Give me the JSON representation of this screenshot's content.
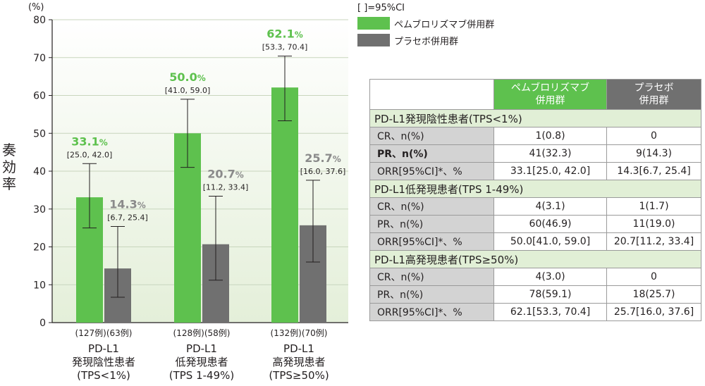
{
  "colors": {
    "pembro": "#5ec14e",
    "placebo": "#707070",
    "bg_top": "#ffffff",
    "bg_bottom": "#e4efd9",
    "pembro_label": "#5ec14e",
    "placebo_label": "#8a8a8a"
  },
  "chart_data": {
    "type": "bar",
    "ylabel": "奏効率",
    "unit": "(%)",
    "ylim": [
      0,
      80
    ],
    "yticks": [
      "0",
      "10",
      "20",
      "30",
      "40",
      "50",
      "60",
      "70",
      "80"
    ],
    "groups": [
      {
        "n_label": "(127例)(63例)",
        "name_lines": [
          "PD-L1",
          "発現陰性患者",
          "(TPS<1%)"
        ]
      },
      {
        "n_label": "(128例)(58例)",
        "name_lines": [
          "PD-L1",
          "低発現患者",
          "(TPS 1-49%)"
        ]
      },
      {
        "n_label": "(132例)(70例)",
        "name_lines": [
          "PD-L1",
          "高発現患者",
          "(TPS≥50%)"
        ]
      }
    ],
    "series": [
      {
        "name": "ペムブロリズマブ併用群",
        "values": [
          33.1,
          50.0,
          62.1
        ],
        "ci_low": [
          25.0,
          41.0,
          53.3
        ],
        "ci_high": [
          42.0,
          59.0,
          70.4
        ],
        "value_labels": [
          "33.1%",
          "50.0%",
          "62.1%"
        ],
        "ci_labels": [
          "[25.0, 42.0]",
          "[41.0, 59.0]",
          "[53.3, 70.4]"
        ]
      },
      {
        "name": "プラセボ併用群",
        "values": [
          14.3,
          20.7,
          25.7
        ],
        "ci_low": [
          6.7,
          11.2,
          16.0
        ],
        "ci_high": [
          25.4,
          33.4,
          37.6
        ],
        "value_labels": [
          "14.3%",
          "20.7%",
          "25.7%"
        ],
        "ci_labels": [
          "[6.7, 25.4]",
          "[11.2, 33.4]",
          "[16.0, 37.6]"
        ]
      }
    ],
    "legend_note": "[ ]=95%CI",
    "legend_position": "top-right"
  },
  "table": {
    "headers": [
      "ペムブロリズマブ\n併用群",
      "プラセボ\n併用群"
    ],
    "sections": [
      {
        "title": "PD-L1発現陰性患者(TPS<1%)",
        "rows": [
          {
            "label": "CR、n(%)",
            "v1": "1(0.8)",
            "v2": "0"
          },
          {
            "label": "PR、n(%)",
            "v1": "41(32.3)",
            "v2": "9(14.3)"
          },
          {
            "label": "ORR[95%CI]*、%",
            "v1": "33.1[25.0, 42.0]",
            "v2": "14.3[6.7, 25.4]"
          }
        ]
      },
      {
        "title": "PD-L1低発現患者(TPS 1-49%)",
        "rows": [
          {
            "label": "CR、n(%)",
            "v1": "4(3.1)",
            "v2": "1(1.7)"
          },
          {
            "label": "PR、n(%)",
            "v1": "60(46.9)",
            "v2": "11(19.0)"
          },
          {
            "label": "ORR[95%CI]*、%",
            "v1": "50.0[41.0, 59.0]",
            "v2": "20.7[11.2, 33.4]"
          }
        ]
      },
      {
        "title": "PD-L1高発現患者(TPS≥50%)",
        "rows": [
          {
            "label": "CR、n(%)",
            "v1": "4(3.0)",
            "v2": "0"
          },
          {
            "label": "PR、n(%)",
            "v1": "78(59.1)",
            "v2": "18(25.7)"
          },
          {
            "label": "ORR[95%CI]*、%",
            "v1": "62.1[53.3, 70.4]",
            "v2": "25.7[16.0, 37.6]"
          }
        ]
      }
    ]
  }
}
